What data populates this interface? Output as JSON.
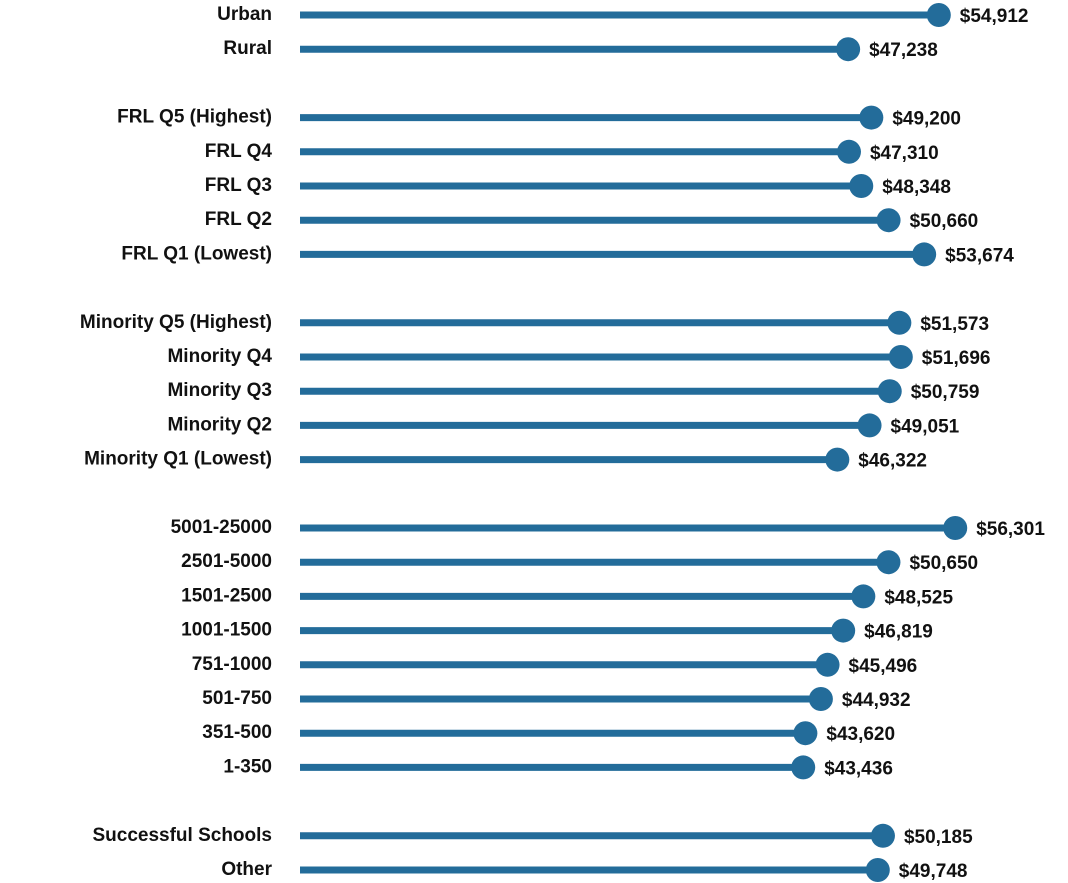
{
  "chart_data": {
    "type": "lollipop",
    "color": "#236c9a",
    "xlim": [
      0,
      65000
    ],
    "groups": [
      {
        "categories": [
          "Urban",
          "Rural"
        ],
        "values": [
          54912,
          47238
        ],
        "value_labels": [
          "$54,912",
          "$47,238"
        ]
      },
      {
        "categories": [
          "FRL Q5 (Highest)",
          "FRL Q4",
          "FRL Q3",
          "FRL Q2",
          "FRL Q1 (Lowest)"
        ],
        "values": [
          49200,
          47310,
          48348,
          50660,
          53674
        ],
        "value_labels": [
          "$49,200",
          "$47,310",
          "$48,348",
          "$50,660",
          "$53,674"
        ]
      },
      {
        "categories": [
          "Minority Q5 (Highest)",
          "Minority Q4",
          "Minority Q3",
          "Minority Q2",
          "Minority Q1 (Lowest)"
        ],
        "values": [
          51573,
          51696,
          50759,
          49051,
          46322
        ],
        "value_labels": [
          "$51,573",
          "$51,696",
          "$50,759",
          "$49,051",
          "$46,322"
        ]
      },
      {
        "categories": [
          "5001-25000",
          "2501-5000",
          "1501-2500",
          "1001-1500",
          "751-1000",
          "501-750",
          "351-500",
          "1-350"
        ],
        "values": [
          56301,
          50650,
          48525,
          46819,
          45496,
          44932,
          43620,
          43436
        ],
        "value_labels": [
          "$56,301",
          "$50,650",
          "$48,525",
          "$46,819",
          "$45,496",
          "$44,932",
          "$43,620",
          "$43,436"
        ]
      },
      {
        "categories": [
          "Successful Schools",
          "Other"
        ],
        "values": [
          50185,
          49748
        ],
        "value_labels": [
          "$50,185",
          "$49,748"
        ]
      }
    ]
  }
}
